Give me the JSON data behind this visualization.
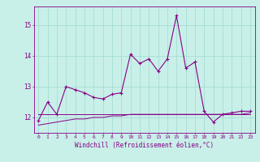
{
  "xlabel": "Windchill (Refroidissement éolien,°C)",
  "bg_color": "#c8f0e8",
  "grid_color": "#a0d8d0",
  "line_color": "#880088",
  "hours": [
    0,
    1,
    2,
    3,
    4,
    5,
    6,
    7,
    8,
    9,
    10,
    11,
    12,
    13,
    14,
    15,
    16,
    17,
    18,
    19,
    20,
    21,
    22,
    23
  ],
  "temp_main": [
    11.9,
    12.5,
    12.1,
    13.0,
    12.9,
    12.8,
    12.65,
    12.6,
    12.75,
    12.8,
    14.05,
    13.75,
    13.9,
    13.5,
    13.9,
    15.3,
    13.6,
    13.8,
    12.2,
    11.85,
    12.1,
    12.15,
    12.2,
    12.2
  ],
  "temp_flat1": [
    12.1,
    12.1,
    12.1,
    12.1,
    12.1,
    12.1,
    12.1,
    12.1,
    12.1,
    12.1,
    12.1,
    12.1,
    12.1,
    12.1,
    12.1,
    12.1,
    12.1,
    12.1,
    12.1,
    12.1,
    12.1,
    12.1,
    12.1,
    12.1
  ],
  "temp_flat2": [
    11.75,
    11.8,
    11.85,
    11.9,
    11.95,
    11.95,
    12.0,
    12.0,
    12.05,
    12.05,
    12.1,
    12.1,
    12.1,
    12.1,
    12.1,
    12.1,
    12.1,
    12.1,
    12.1,
    12.1,
    12.1,
    12.1,
    12.1,
    12.15
  ],
  "ylim": [
    11.5,
    15.6
  ],
  "yticks": [
    12,
    13,
    14,
    15
  ],
  "xtick_fontsize": 4.5,
  "ytick_fontsize": 5.5,
  "xlabel_fontsize": 5.5
}
